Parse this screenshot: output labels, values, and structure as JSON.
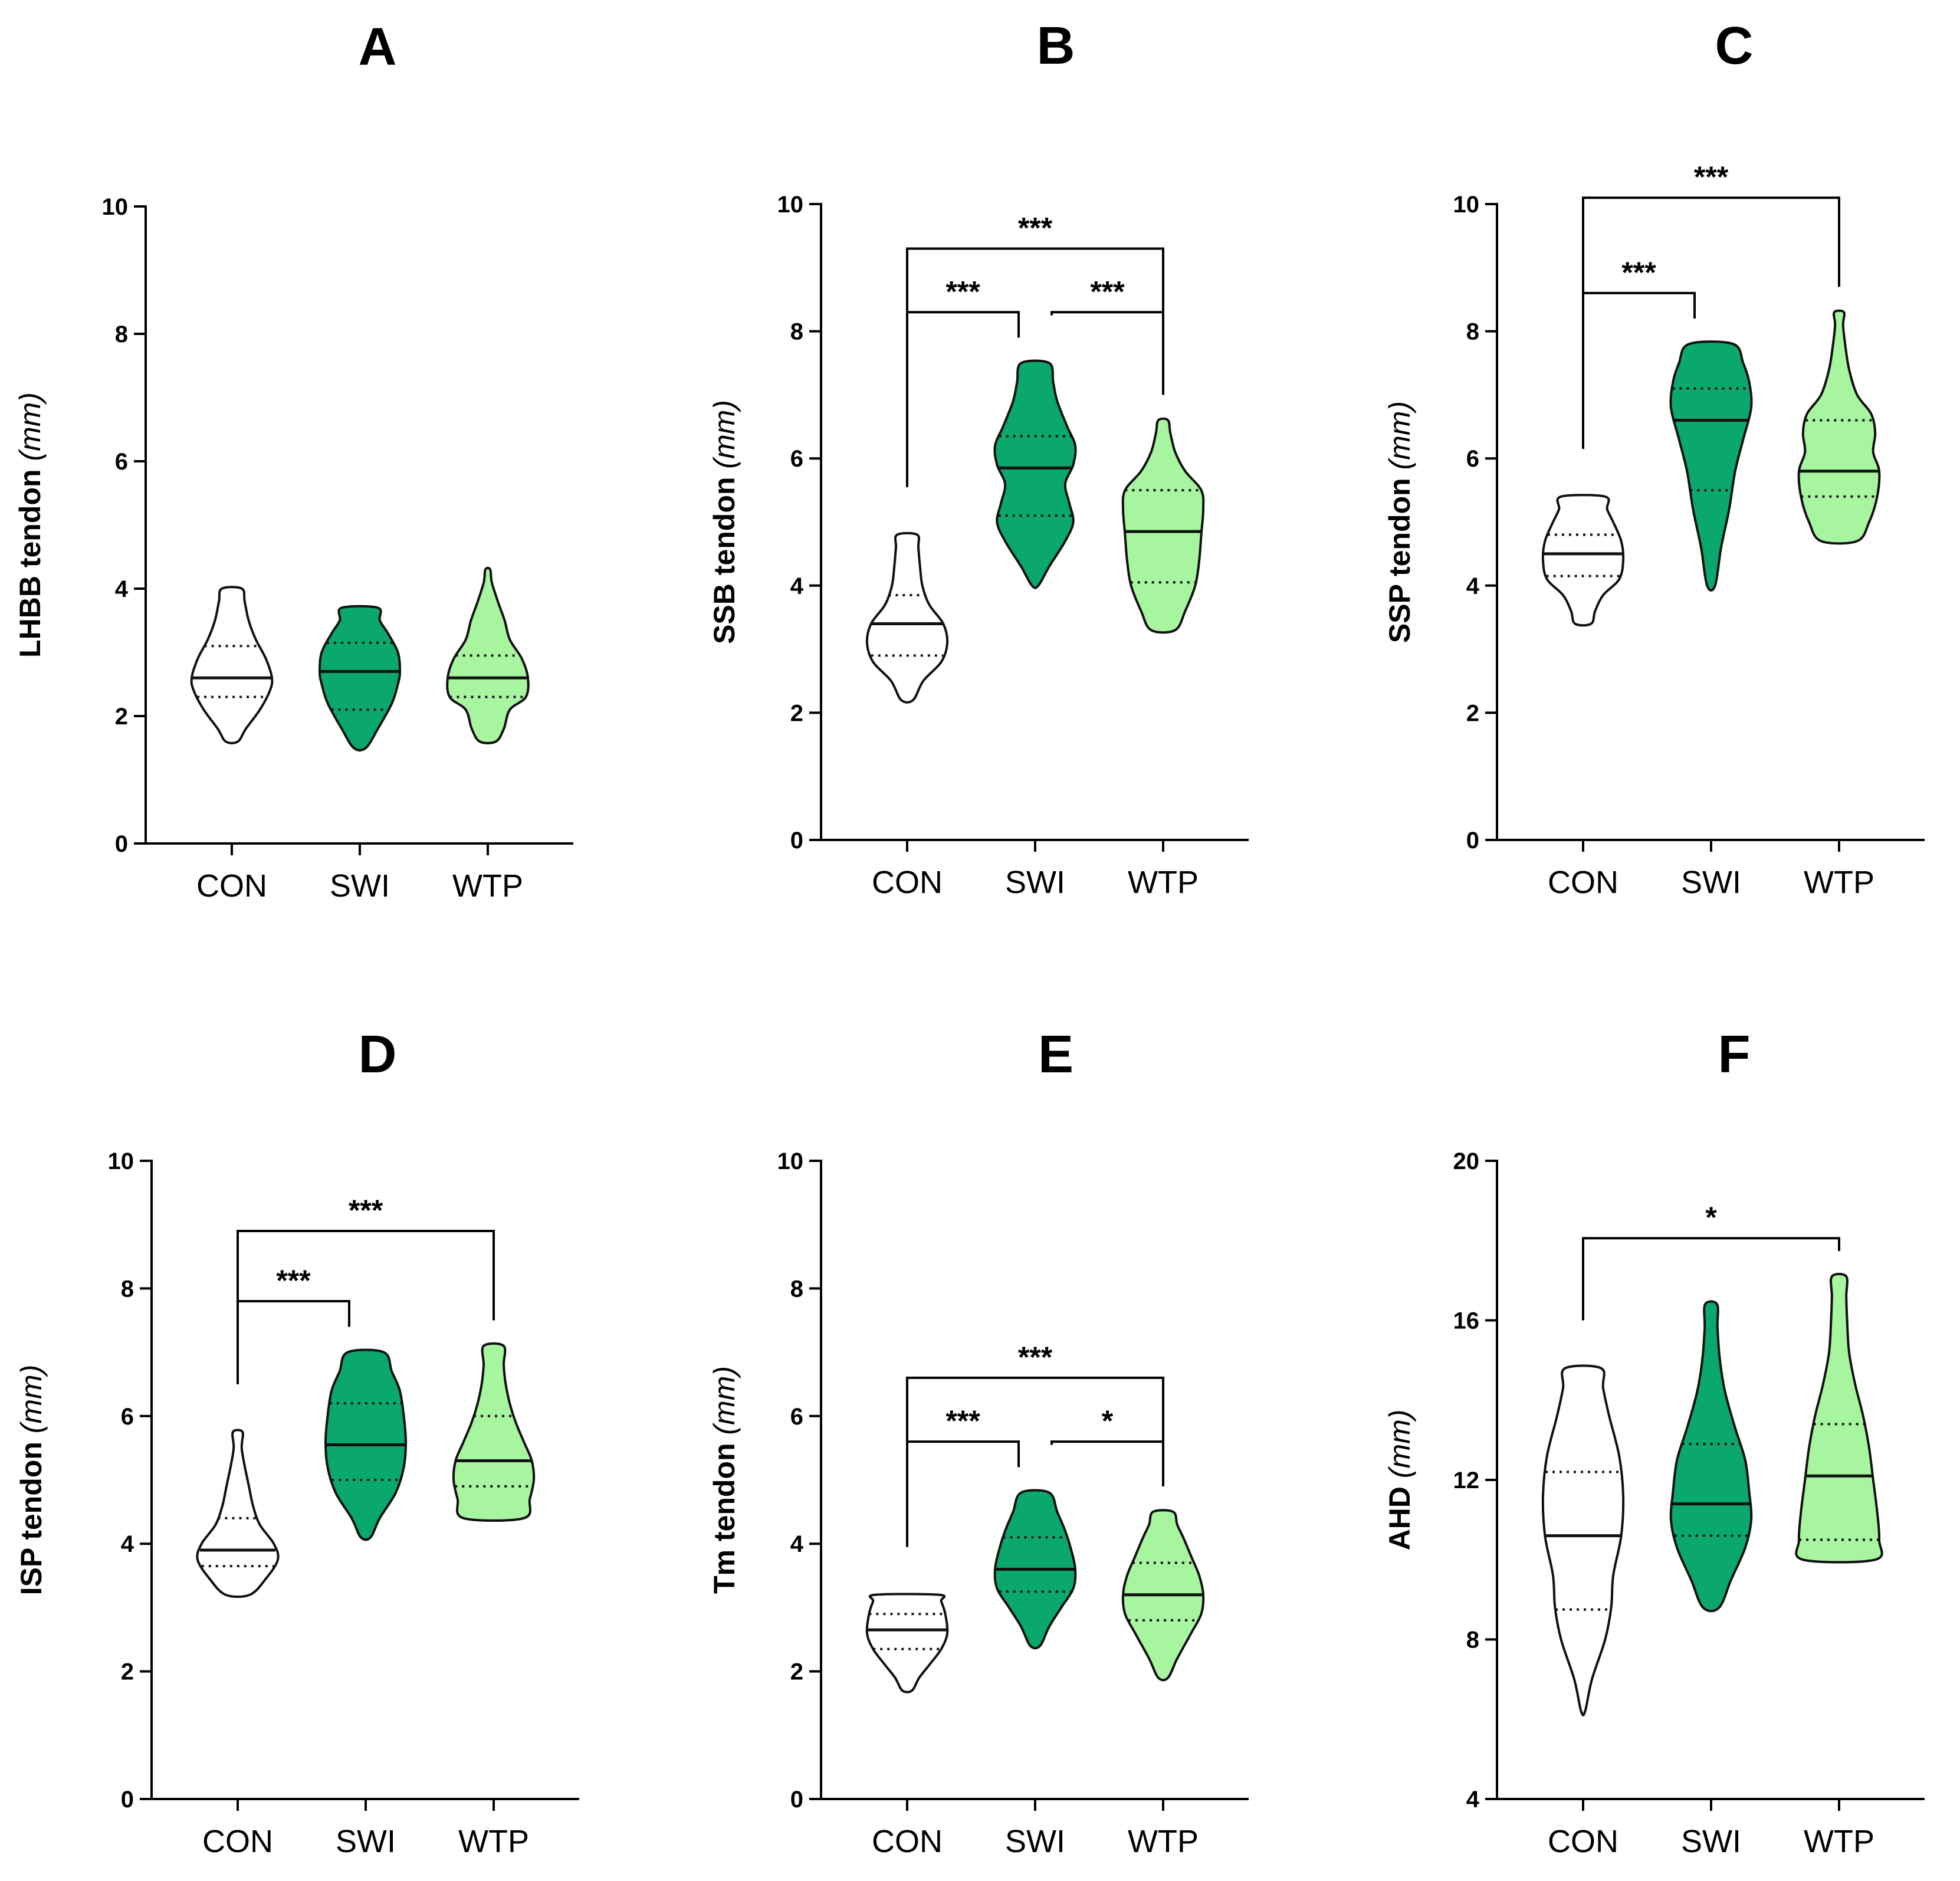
{
  "colors": {
    "CON": "#ffffff",
    "SWI": "#0aa86c",
    "WTP": "#a8f5a0",
    "stroke": "#111111"
  },
  "chart_data": [
    {
      "panel": "A",
      "type": "violin",
      "ylabel": "LHBB tendon",
      "yunit": "(mm)",
      "ylim": [
        0,
        10
      ],
      "yticks": [
        0,
        2,
        4,
        6,
        8,
        10
      ],
      "categories": [
        "CON",
        "SWI",
        "WTP"
      ],
      "series": [
        {
          "name": "CON",
          "min": 1.6,
          "max": 4.0,
          "median": 2.6,
          "q1": 2.3,
          "q3": 3.1,
          "profile": [
            [
              1.6,
              0.15
            ],
            [
              1.8,
              0.35
            ],
            [
              2.1,
              0.7
            ],
            [
              2.4,
              0.95
            ],
            [
              2.6,
              1.0
            ],
            [
              2.9,
              0.85
            ],
            [
              3.2,
              0.6
            ],
            [
              3.5,
              0.42
            ],
            [
              3.8,
              0.32
            ],
            [
              4.0,
              0.25
            ]
          ]
        },
        {
          "name": "SWI",
          "min": 1.5,
          "max": 3.7,
          "median": 2.7,
          "q1": 2.1,
          "q3": 3.15,
          "profile": [
            [
              1.5,
              0.15
            ],
            [
              1.8,
              0.45
            ],
            [
              2.2,
              0.8
            ],
            [
              2.5,
              0.95
            ],
            [
              2.7,
              1.0
            ],
            [
              3.0,
              0.95
            ],
            [
              3.3,
              0.7
            ],
            [
              3.5,
              0.5
            ],
            [
              3.7,
              0.45
            ]
          ]
        },
        {
          "name": "WTP",
          "min": 1.6,
          "max": 4.3,
          "median": 2.6,
          "q1": 2.3,
          "q3": 2.95,
          "profile": [
            [
              1.6,
              0.2
            ],
            [
              1.8,
              0.4
            ],
            [
              2.1,
              0.55
            ],
            [
              2.3,
              0.95
            ],
            [
              2.6,
              1.0
            ],
            [
              2.9,
              0.85
            ],
            [
              3.2,
              0.55
            ],
            [
              3.5,
              0.42
            ],
            [
              3.8,
              0.25
            ],
            [
              4.1,
              0.1
            ],
            [
              4.3,
              0.06
            ]
          ]
        }
      ],
      "comparisons": []
    },
    {
      "panel": "B",
      "type": "violin",
      "ylabel": "SSB tendon",
      "yunit": "(mm)",
      "ylim": [
        0,
        10
      ],
      "yticks": [
        0,
        2,
        4,
        6,
        8,
        10
      ],
      "categories": [
        "CON",
        "SWI",
        "WTP"
      ],
      "series": [
        {
          "name": "CON",
          "min": 2.2,
          "max": 4.8,
          "median": 3.4,
          "q1": 2.9,
          "q3": 3.85,
          "profile": [
            [
              2.2,
              0.15
            ],
            [
              2.5,
              0.4
            ],
            [
              2.8,
              0.85
            ],
            [
              3.1,
              1.0
            ],
            [
              3.4,
              0.9
            ],
            [
              3.7,
              0.55
            ],
            [
              4.0,
              0.38
            ],
            [
              4.3,
              0.32
            ],
            [
              4.6,
              0.28
            ],
            [
              4.8,
              0.25
            ]
          ]
        },
        {
          "name": "SWI",
          "min": 4.0,
          "max": 7.5,
          "median": 5.85,
          "q1": 5.1,
          "q3": 6.35,
          "profile": [
            [
              4.0,
              0.08
            ],
            [
              4.3,
              0.35
            ],
            [
              4.7,
              0.75
            ],
            [
              5.0,
              0.95
            ],
            [
              5.3,
              0.85
            ],
            [
              5.6,
              0.75
            ],
            [
              5.9,
              0.95
            ],
            [
              6.2,
              1.0
            ],
            [
              6.5,
              0.8
            ],
            [
              6.9,
              0.55
            ],
            [
              7.2,
              0.45
            ],
            [
              7.5,
              0.35
            ]
          ]
        },
        {
          "name": "WTP",
          "min": 3.3,
          "max": 6.6,
          "median": 4.85,
          "q1": 4.05,
          "q3": 5.5,
          "profile": [
            [
              3.3,
              0.3
            ],
            [
              3.6,
              0.55
            ],
            [
              4.0,
              0.8
            ],
            [
              4.4,
              0.9
            ],
            [
              4.8,
              0.95
            ],
            [
              5.2,
              1.0
            ],
            [
              5.5,
              0.95
            ],
            [
              5.8,
              0.55
            ],
            [
              6.1,
              0.3
            ],
            [
              6.4,
              0.18
            ],
            [
              6.6,
              0.12
            ]
          ]
        }
      ],
      "comparisons": [
        {
          "from": "CON",
          "to": "SWI",
          "label": "***",
          "level": 1
        },
        {
          "from": "SWI",
          "to": "WTP",
          "label": "***",
          "level": 1
        },
        {
          "from": "CON",
          "to": "WTP",
          "label": "***",
          "level": 2
        }
      ]
    },
    {
      "panel": "C",
      "type": "violin",
      "ylabel": "SSP tendon",
      "yunit": "(mm)",
      "ylim": [
        0,
        10
      ],
      "yticks": [
        0,
        2,
        4,
        6,
        8,
        10
      ],
      "categories": [
        "CON",
        "SWI",
        "WTP"
      ],
      "series": [
        {
          "name": "CON",
          "min": 3.4,
          "max": 5.4,
          "median": 4.5,
          "q1": 4.15,
          "q3": 4.8,
          "profile": [
            [
              3.4,
              0.2
            ],
            [
              3.6,
              0.3
            ],
            [
              3.85,
              0.5
            ],
            [
              4.1,
              0.9
            ],
            [
              4.4,
              1.0
            ],
            [
              4.7,
              0.95
            ],
            [
              5.0,
              0.75
            ],
            [
              5.2,
              0.6
            ],
            [
              5.4,
              0.55
            ]
          ]
        },
        {
          "name": "SWI",
          "min": 4.0,
          "max": 7.8,
          "median": 6.6,
          "q1": 5.5,
          "q3": 7.1,
          "profile": [
            [
              4.0,
              0.1
            ],
            [
              4.6,
              0.25
            ],
            [
              5.2,
              0.45
            ],
            [
              5.8,
              0.6
            ],
            [
              6.3,
              0.8
            ],
            [
              6.8,
              1.0
            ],
            [
              7.2,
              0.95
            ],
            [
              7.5,
              0.8
            ],
            [
              7.8,
              0.55
            ]
          ]
        },
        {
          "name": "WTP",
          "min": 4.7,
          "max": 8.3,
          "median": 5.8,
          "q1": 5.4,
          "q3": 6.6,
          "profile": [
            [
              4.7,
              0.45
            ],
            [
              5.0,
              0.75
            ],
            [
              5.4,
              0.95
            ],
            [
              5.8,
              1.0
            ],
            [
              6.1,
              0.85
            ],
            [
              6.4,
              0.9
            ],
            [
              6.7,
              0.8
            ],
            [
              7.0,
              0.45
            ],
            [
              7.4,
              0.25
            ],
            [
              7.8,
              0.15
            ],
            [
              8.1,
              0.1
            ],
            [
              8.3,
              0.12
            ]
          ]
        }
      ],
      "comparisons": [
        {
          "from": "CON",
          "to": "SWI",
          "label": "***",
          "level": 1
        },
        {
          "from": "CON",
          "to": "WTP",
          "label": "***",
          "level": 2
        }
      ]
    },
    {
      "panel": "D",
      "type": "violin",
      "ylabel": "ISP tendon",
      "yunit": "(mm)",
      "ylim": [
        0,
        10
      ],
      "yticks": [
        0,
        2,
        4,
        6,
        8,
        10
      ],
      "categories": [
        "CON",
        "SWI",
        "WTP"
      ],
      "series": [
        {
          "name": "CON",
          "min": 3.2,
          "max": 5.75,
          "median": 3.9,
          "q1": 3.65,
          "q3": 4.4,
          "profile": [
            [
              3.2,
              0.3
            ],
            [
              3.45,
              0.7
            ],
            [
              3.75,
              1.0
            ],
            [
              4.0,
              0.9
            ],
            [
              4.3,
              0.55
            ],
            [
              4.6,
              0.38
            ],
            [
              4.9,
              0.28
            ],
            [
              5.2,
              0.18
            ],
            [
              5.5,
              0.1
            ],
            [
              5.75,
              0.12
            ]
          ]
        },
        {
          "name": "SWI",
          "min": 4.1,
          "max": 7.0,
          "median": 5.55,
          "q1": 5.0,
          "q3": 6.2,
          "profile": [
            [
              4.1,
              0.12
            ],
            [
              4.4,
              0.35
            ],
            [
              4.8,
              0.75
            ],
            [
              5.2,
              0.95
            ],
            [
              5.6,
              1.0
            ],
            [
              6.0,
              0.95
            ],
            [
              6.4,
              0.85
            ],
            [
              6.7,
              0.65
            ],
            [
              7.0,
              0.45
            ]
          ]
        },
        {
          "name": "WTP",
          "min": 4.4,
          "max": 7.1,
          "median": 5.3,
          "q1": 4.9,
          "q3": 6.0,
          "profile": [
            [
              4.4,
              0.75
            ],
            [
              4.7,
              0.9
            ],
            [
              5.0,
              1.0
            ],
            [
              5.3,
              0.95
            ],
            [
              5.6,
              0.75
            ],
            [
              5.9,
              0.55
            ],
            [
              6.2,
              0.4
            ],
            [
              6.5,
              0.3
            ],
            [
              6.8,
              0.25
            ],
            [
              7.1,
              0.25
            ]
          ]
        }
      ],
      "comparisons": [
        {
          "from": "CON",
          "to": "SWI",
          "label": "***",
          "level": 1
        },
        {
          "from": "CON",
          "to": "WTP",
          "label": "***",
          "level": 2
        }
      ]
    },
    {
      "panel": "E",
      "type": "violin",
      "ylabel": "Tm tendon",
      "yunit": "(mm)",
      "ylim": [
        0,
        10
      ],
      "yticks": [
        0,
        2,
        4,
        6,
        8,
        10
      ],
      "categories": [
        "CON",
        "SWI",
        "WTP"
      ],
      "series": [
        {
          "name": "CON",
          "min": 1.7,
          "max": 3.2,
          "median": 2.65,
          "q1": 2.35,
          "q3": 2.9,
          "profile": [
            [
              1.7,
              0.12
            ],
            [
              1.9,
              0.3
            ],
            [
              2.1,
              0.55
            ],
            [
              2.35,
              0.85
            ],
            [
              2.6,
              1.0
            ],
            [
              2.9,
              0.95
            ],
            [
              3.1,
              0.85
            ],
            [
              3.2,
              0.8
            ]
          ]
        },
        {
          "name": "SWI",
          "min": 2.4,
          "max": 4.8,
          "median": 3.6,
          "q1": 3.25,
          "q3": 4.1,
          "profile": [
            [
              2.4,
              0.12
            ],
            [
              2.7,
              0.35
            ],
            [
              3.0,
              0.65
            ],
            [
              3.3,
              0.95
            ],
            [
              3.6,
              1.0
            ],
            [
              3.9,
              0.9
            ],
            [
              4.2,
              0.75
            ],
            [
              4.5,
              0.55
            ],
            [
              4.8,
              0.35
            ]
          ]
        },
        {
          "name": "WTP",
          "min": 1.9,
          "max": 4.5,
          "median": 3.2,
          "q1": 2.8,
          "q3": 3.7,
          "profile": [
            [
              1.9,
              0.12
            ],
            [
              2.2,
              0.35
            ],
            [
              2.6,
              0.7
            ],
            [
              2.9,
              0.95
            ],
            [
              3.2,
              1.0
            ],
            [
              3.5,
              0.9
            ],
            [
              3.8,
              0.7
            ],
            [
              4.1,
              0.5
            ],
            [
              4.3,
              0.35
            ],
            [
              4.5,
              0.25
            ]
          ]
        }
      ],
      "comparisons": [
        {
          "from": "CON",
          "to": "SWI",
          "label": "***",
          "level": 1
        },
        {
          "from": "SWI",
          "to": "WTP",
          "label": "*",
          "level": 1
        },
        {
          "from": "CON",
          "to": "WTP",
          "label": "***",
          "level": 2
        }
      ]
    },
    {
      "panel": "F",
      "type": "violin",
      "ylabel": "AHD",
      "yunit": "(mm)",
      "ylim": [
        4,
        20
      ],
      "yticks": [
        4,
        8,
        12,
        16,
        20
      ],
      "categories": [
        "CON",
        "SWI",
        "WTP"
      ],
      "series": [
        {
          "name": "CON",
          "min": 6.2,
          "max": 14.8,
          "median": 10.6,
          "q1": 8.75,
          "q3": 12.2,
          "profile": [
            [
              6.2,
              0.05
            ],
            [
              7.0,
              0.22
            ],
            [
              8.0,
              0.55
            ],
            [
              8.8,
              0.7
            ],
            [
              9.6,
              0.75
            ],
            [
              10.6,
              0.95
            ],
            [
              11.6,
              1.0
            ],
            [
              12.6,
              0.9
            ],
            [
              13.6,
              0.65
            ],
            [
              14.3,
              0.5
            ],
            [
              14.8,
              0.45
            ]
          ]
        },
        {
          "name": "SWI",
          "min": 8.8,
          "max": 16.4,
          "median": 11.4,
          "q1": 10.6,
          "q3": 12.9,
          "profile": [
            [
              8.8,
              0.2
            ],
            [
              9.5,
              0.5
            ],
            [
              10.3,
              0.85
            ],
            [
              11.0,
              1.0
            ],
            [
              11.7,
              0.95
            ],
            [
              12.5,
              0.85
            ],
            [
              13.3,
              0.6
            ],
            [
              14.2,
              0.35
            ],
            [
              15.0,
              0.22
            ],
            [
              15.8,
              0.16
            ],
            [
              16.4,
              0.15
            ]
          ]
        },
        {
          "name": "WTP",
          "min": 10.0,
          "max": 17.1,
          "median": 12.1,
          "q1": 10.5,
          "q3": 13.4,
          "profile": [
            [
              10.0,
              0.9
            ],
            [
              10.5,
              1.0
            ],
            [
              11.2,
              0.95
            ],
            [
              12.0,
              0.85
            ],
            [
              12.8,
              0.75
            ],
            [
              13.6,
              0.6
            ],
            [
              14.4,
              0.4
            ],
            [
              15.2,
              0.25
            ],
            [
              16.0,
              0.2
            ],
            [
              16.6,
              0.18
            ],
            [
              17.1,
              0.18
            ]
          ]
        }
      ],
      "comparisons": [
        {
          "from": "CON",
          "to": "WTP",
          "label": "*",
          "level": 2
        }
      ]
    }
  ]
}
